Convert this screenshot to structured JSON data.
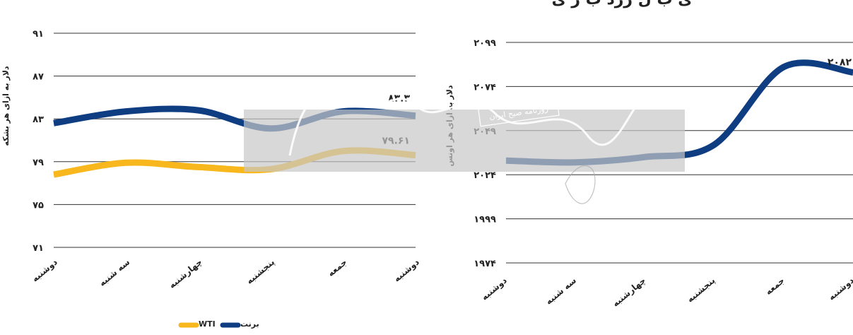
{
  "colors": {
    "brent": "#0f3d82",
    "wti": "#f7b71d",
    "grid": "#333333",
    "watermark_band": "#c8c8c8"
  },
  "watermark": {
    "caption": "روزنامه صبح ایران"
  },
  "chart_data": [
    {
      "type": "line",
      "ylabel": "دلار به ازای هر بشکه",
      "ylim": [
        71,
        91
      ],
      "yticks": [
        "۷۱",
        "۷۵",
        "۷۹",
        "۸۳",
        "۸۷",
        "۹۱"
      ],
      "categories": [
        "دوشنبه",
        "سه شنبه",
        "چهارشنبه",
        "پنجشنبه",
        "جمعه",
        "دوشنبه"
      ],
      "series": [
        {
          "name": "برنت",
          "values": [
            82.6,
            83.7,
            83.8,
            82.1,
            83.7,
            83.3
          ],
          "last_label": "۸۳.۳"
        },
        {
          "name": "WTI",
          "values": [
            77.8,
            78.9,
            78.5,
            78.3,
            80.0,
            79.61
          ],
          "last_label": "۷۹.۶۱"
        }
      ],
      "legend_position": "bottom"
    },
    {
      "type": "line",
      "title": "ی ب ل زرد ب ر ی",
      "ylabel": "دلار به ازای هر اونس",
      "ylim": [
        1974,
        2099
      ],
      "yticks": [
        "۱۹۷۴",
        "۱۹۹۹",
        "۲۰۲۴",
        "۲۰۴۹",
        "۲۰۷۴",
        "۲۰۹۹"
      ],
      "categories": [
        "دوشنبه",
        "سه شنبه",
        "چهارشنبه",
        "پنجشنبه",
        "جمعه",
        "دوشنبه"
      ],
      "series": [
        {
          "values": [
            2032,
            2031,
            2034,
            2041,
            2085,
            2082
          ],
          "last_label": "۲۰۸۲"
        }
      ]
    }
  ]
}
